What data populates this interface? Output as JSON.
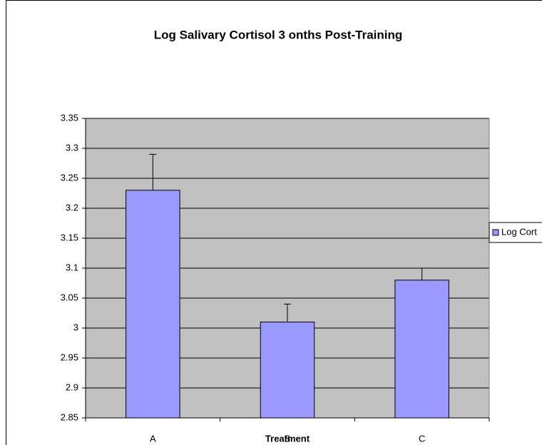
{
  "chart_data": {
    "type": "bar",
    "title": "Log Salivary Cortisol 3 onths Post-Training",
    "x_label": "Treatment",
    "categories": [
      "A",
      "B",
      "C"
    ],
    "series": [
      {
        "name": "Log Cort",
        "color": "#9999ff",
        "values": [
          3.23,
          3.01,
          3.08
        ],
        "errors": [
          0.06,
          0.03,
          0.02
        ]
      }
    ],
    "ylim": [
      2.85,
      3.35
    ],
    "yticks": [
      2.85,
      2.9,
      2.95,
      3,
      3.05,
      3.1,
      3.15,
      3.2,
      3.25,
      3.3,
      3.35
    ],
    "grid": true,
    "legend": "right"
  }
}
